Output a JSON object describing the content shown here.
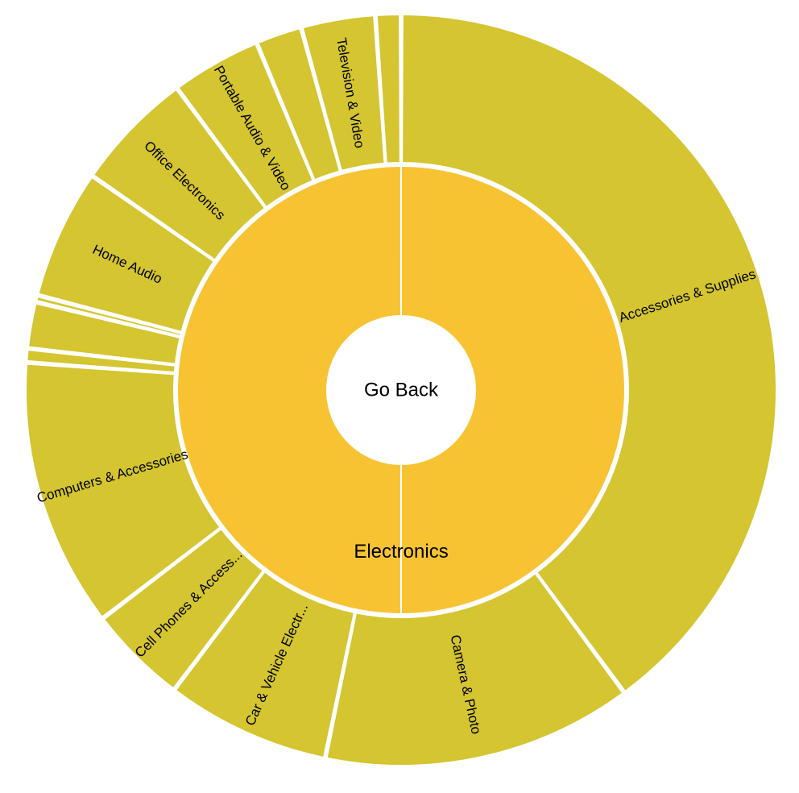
{
  "center_button": {
    "label": "Go Back"
  },
  "colors": {
    "inner": "#F8C333",
    "outer": "#D4C531",
    "stroke": "#FFFFFF",
    "center": "#FFFFFF"
  },
  "chart_data": {
    "type": "sunburst",
    "root": {
      "name": "Electronics",
      "children": [
        {
          "name": "Accessories & Supplies",
          "value": 40.0
        },
        {
          "name": "Camera & Photo",
          "value": 13.4
        },
        {
          "name": "Car & Vehicle Electr...",
          "value": 7.1
        },
        {
          "name": "Cell Phones & Access...",
          "value": 4.3
        },
        {
          "name": "Computers & Accessories",
          "value": 11.6
        },
        {
          "name": "",
          "value": 0.6
        },
        {
          "name": "",
          "value": 2.0
        },
        {
          "name": "",
          "value": 0.3
        },
        {
          "name": "Home Audio",
          "value": 5.6
        },
        {
          "name": "Office Electronics",
          "value": 5.2
        },
        {
          "name": "Portable Audio & Video",
          "value": 3.9
        },
        {
          "name": "",
          "value": 2.0
        },
        {
          "name": "Television & Video",
          "value": 3.2
        },
        {
          "name": "",
          "value": 1.1
        }
      ]
    }
  }
}
